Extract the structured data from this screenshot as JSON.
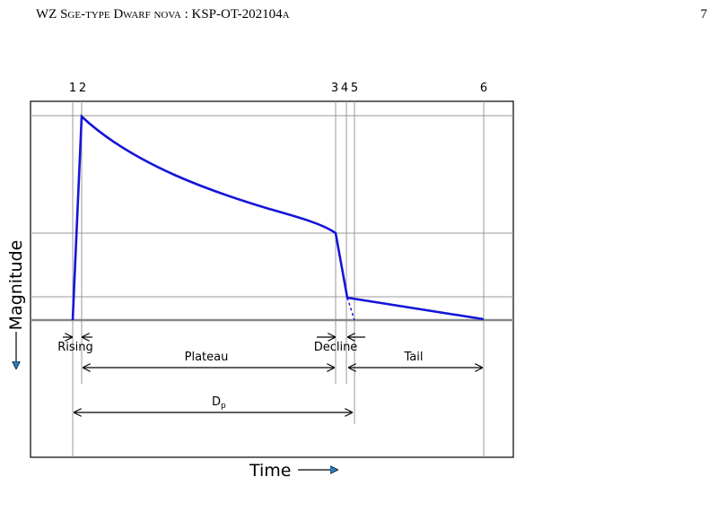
{
  "header": {
    "running_title": "WZ Sge-type Dwarf nova : KSP-OT-202104a",
    "page_number": "7"
  },
  "figure": {
    "epoch_labels": [
      "1",
      "2",
      "3",
      "4",
      "5",
      "6"
    ],
    "y_axis_label": "Magnitude",
    "x_axis_label": "Time",
    "phases": {
      "rising": "Rising",
      "plateau": "Plateau",
      "decline": "Decline",
      "tail": "Tail"
    },
    "duration_label": {
      "text": "D",
      "subscript": "p"
    }
  }
}
